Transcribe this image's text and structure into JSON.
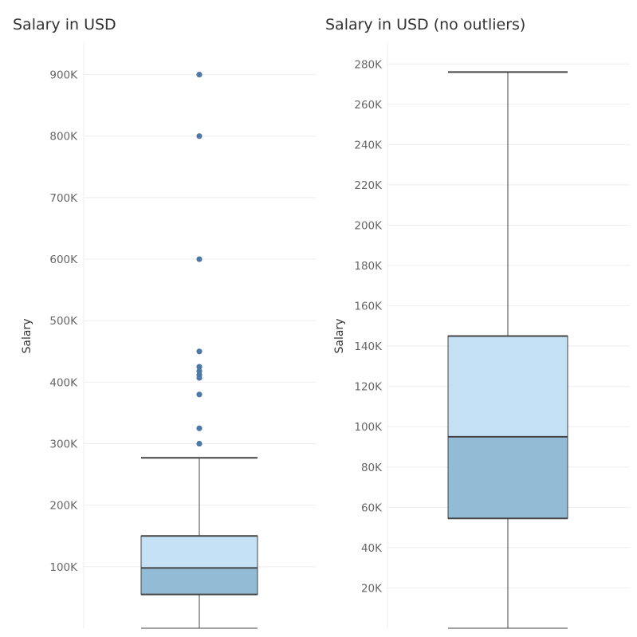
{
  "chart_data": [
    {
      "type": "boxplot",
      "title": "Salary in USD",
      "ylabel": "Salary",
      "ylim": [
        0,
        950000
      ],
      "yticks": [
        100000,
        200000,
        300000,
        400000,
        500000,
        600000,
        700000,
        800000,
        900000
      ],
      "ytick_labels": [
        "100K",
        "200K",
        "300K",
        "400K",
        "500K",
        "600K",
        "700K",
        "800K",
        "900K"
      ],
      "grid": true,
      "box": {
        "min": 0,
        "q1": 55000,
        "median": 98000,
        "q3": 150000,
        "max": 277000,
        "outliers": [
          300000,
          325000,
          380000,
          407000,
          412000,
          418000,
          425000,
          450000,
          600000,
          800000,
          900000
        ]
      },
      "colors": {
        "upper_box": "#c5e1f5",
        "lower_box": "#92bbd6",
        "outlier": "#4e79a7",
        "line": "#444444"
      }
    },
    {
      "type": "boxplot",
      "title": "Salary in USD (no outliers)",
      "ylabel": "Salary",
      "ylim": [
        0,
        290000
      ],
      "yticks": [
        20000,
        40000,
        60000,
        80000,
        100000,
        120000,
        140000,
        160000,
        180000,
        200000,
        220000,
        240000,
        260000,
        280000
      ],
      "ytick_labels": [
        "20K",
        "40K",
        "60K",
        "80K",
        "100K",
        "120K",
        "140K",
        "160K",
        "180K",
        "200K",
        "220K",
        "240K",
        "260K",
        "280K"
      ],
      "grid": true,
      "box": {
        "min": 0,
        "q1": 54500,
        "median": 95000,
        "q3": 145000,
        "max": 276000,
        "outliers": []
      },
      "colors": {
        "upper_box": "#c5e1f5",
        "lower_box": "#92bbd6",
        "outlier": "#4e79a7",
        "line": "#444444"
      }
    }
  ]
}
